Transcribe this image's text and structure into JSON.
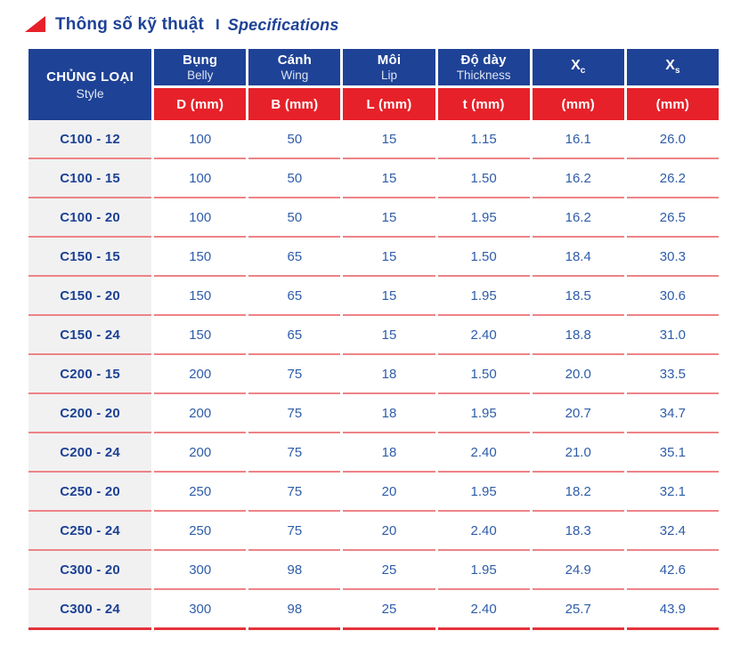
{
  "section_title": {
    "vi": "Thông số kỹ thuật",
    "divider": "I",
    "en": "Specifications"
  },
  "colors": {
    "navy": "#1e4296",
    "red": "#e62129",
    "row_separator": "#ee8387",
    "bottom_border": "#e4343b",
    "label_bg": "#f1f1f2",
    "data_text": "#2e5ca9"
  },
  "table": {
    "style_column": {
      "vi": "CHỦNG LOẠI",
      "en": "Style"
    },
    "columns": [
      {
        "vi": "Bụng",
        "en": "Belly",
        "unit": "D (mm)"
      },
      {
        "vi": "Cánh",
        "en": "Wing",
        "unit": "B (mm)"
      },
      {
        "vi": "Môi",
        "en": "Lip",
        "unit": "L (mm)"
      },
      {
        "vi": "Độ dày",
        "en": "Thickness",
        "unit": "t (mm)"
      },
      {
        "base": "X",
        "sub": "c",
        "unit": "(mm)"
      },
      {
        "base": "X",
        "sub": "s",
        "unit": "(mm)"
      }
    ],
    "rows": [
      {
        "style": "C100 - 12",
        "values": [
          "100",
          "50",
          "15",
          "1.15",
          "16.1",
          "26.0"
        ]
      },
      {
        "style": "C100 - 15",
        "values": [
          "100",
          "50",
          "15",
          "1.50",
          "16.2",
          "26.2"
        ]
      },
      {
        "style": "C100 - 20",
        "values": [
          "100",
          "50",
          "15",
          "1.95",
          "16.2",
          "26.5"
        ]
      },
      {
        "style": "C150 - 15",
        "values": [
          "150",
          "65",
          "15",
          "1.50",
          "18.4",
          "30.3"
        ]
      },
      {
        "style": "C150 - 20",
        "values": [
          "150",
          "65",
          "15",
          "1.95",
          "18.5",
          "30.6"
        ]
      },
      {
        "style": "C150 - 24",
        "values": [
          "150",
          "65",
          "15",
          "2.40",
          "18.8",
          "31.0"
        ]
      },
      {
        "style": "C200 - 15",
        "values": [
          "200",
          "75",
          "18",
          "1.50",
          "20.0",
          "33.5"
        ]
      },
      {
        "style": "C200 - 20",
        "values": [
          "200",
          "75",
          "18",
          "1.95",
          "20.7",
          "34.7"
        ]
      },
      {
        "style": "C200 - 24",
        "values": [
          "200",
          "75",
          "18",
          "2.40",
          "21.0",
          "35.1"
        ]
      },
      {
        "style": "C250 - 20",
        "values": [
          "250",
          "75",
          "20",
          "1.95",
          "18.2",
          "32.1"
        ]
      },
      {
        "style": "C250 - 24",
        "values": [
          "250",
          "75",
          "20",
          "2.40",
          "18.3",
          "32.4"
        ]
      },
      {
        "style": "C300 - 20",
        "values": [
          "300",
          "98",
          "25",
          "1.95",
          "24.9",
          "42.6"
        ]
      },
      {
        "style": "C300 - 24",
        "values": [
          "300",
          "98",
          "25",
          "2.40",
          "25.7",
          "43.9"
        ]
      }
    ]
  }
}
